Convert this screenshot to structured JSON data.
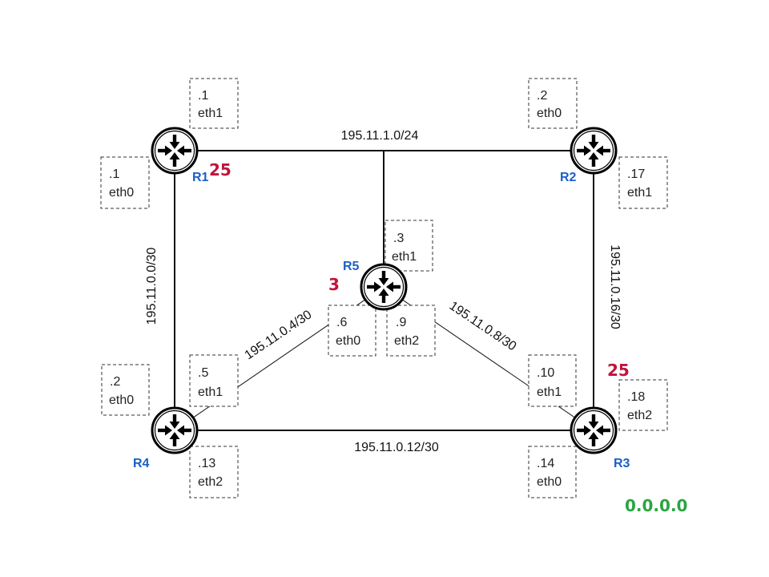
{
  "colors": {
    "router_label": "#1a5fc8",
    "cost": "#c0143c",
    "router_id": "#2aa541",
    "link": "#111111"
  },
  "networks": {
    "r1_r2_r5": "195.11.1.0/24",
    "r1_r4": "195.11.0.0/30",
    "r2_r3": "195.11.0.16/30",
    "r4_r5": "195.11.0.4/30",
    "r5_r3": "195.11.0.8/30",
    "r4_r3": "195.11.0.12/30"
  },
  "routers": {
    "r1": {
      "label": "R1",
      "icon": "router-icon",
      "cost": "25",
      "eth1": {
        "addr": ".1",
        "name": "eth1"
      },
      "eth0": {
        "addr": ".1",
        "name": "eth0"
      }
    },
    "r2": {
      "label": "R2",
      "icon": "router-icon",
      "eth0": {
        "addr": ".2",
        "name": "eth0"
      },
      "eth1": {
        "addr": ".17",
        "name": "eth1"
      }
    },
    "r3": {
      "label": "R3",
      "icon": "router-icon",
      "cost": "25",
      "eth1": {
        "addr": ".10",
        "name": "eth1"
      },
      "eth2": {
        "addr": ".18",
        "name": "eth2"
      },
      "eth0": {
        "addr": ".14",
        "name": "eth0"
      }
    },
    "r4": {
      "label": "R4",
      "icon": "router-icon",
      "eth0": {
        "addr": ".2",
        "name": "eth0"
      },
      "eth1": {
        "addr": ".5",
        "name": "eth1"
      },
      "eth2": {
        "addr": ".13",
        "name": "eth2"
      }
    },
    "r5": {
      "label": "R5",
      "icon": "router-icon",
      "cost": "3",
      "eth1": {
        "addr": ".3",
        "name": "eth1"
      },
      "eth0": {
        "addr": ".6",
        "name": "eth0"
      },
      "eth2": {
        "addr": ".9",
        "name": "eth2"
      }
    }
  },
  "router_id": "0.0.0.0"
}
